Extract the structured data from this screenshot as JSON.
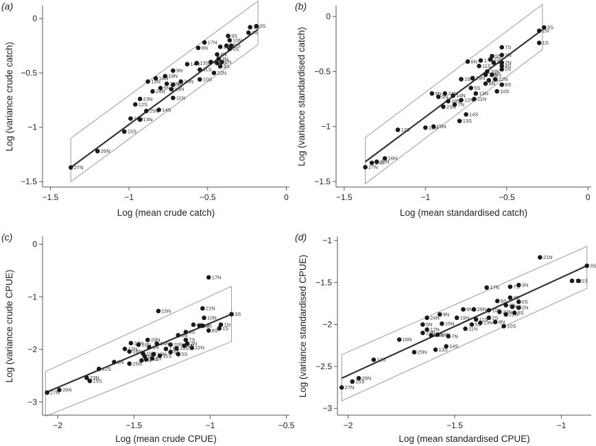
{
  "figure": {
    "panel_labels": [
      "(a)",
      "(b)",
      "(c)",
      "(d)"
    ]
  },
  "chart_data": [
    {
      "id": "a",
      "type": "scatter",
      "panel_label": "(a)",
      "xlabel": "Log (mean crude catch)",
      "ylabel": "Log (variance crude catch)",
      "xlim": [
        -1.55,
        0.02
      ],
      "ylim": [
        -1.55,
        0.12
      ],
      "xticks": [
        -1.5,
        -1,
        -0.5,
        0
      ],
      "xtick_labels": [
        "−1.5",
        "−1",
        "−0.5",
        "0"
      ],
      "yticks": [
        -1.5,
        -1,
        -0.5,
        0
      ],
      "ytick_labels": [
        "−1.5",
        "−1",
        "−0.5",
        "0"
      ],
      "fit_line": [
        [
          -1.37,
          -1.37
        ],
        [
          -0.18,
          -0.1
        ]
      ],
      "band": [
        [
          -1.37,
          -1.1
        ],
        [
          -0.18,
          0.16
        ],
        [
          -0.18,
          -0.24
        ],
        [
          -1.37,
          -1.5
        ]
      ],
      "points": [
        {
          "label": "27N",
          "x": -1.37,
          "y": -1.37
        },
        {
          "label": "26N",
          "x": -1.2,
          "y": -1.22
        },
        {
          "label": "15S",
          "x": -1.03,
          "y": -1.04
        },
        {
          "label": "16N",
          "x": -0.99,
          "y": -0.92
        },
        {
          "label": "13N",
          "x": -0.93,
          "y": -0.93
        },
        {
          "label": "25N",
          "x": -0.89,
          "y": -0.85
        },
        {
          "label": "14S",
          "x": -0.81,
          "y": -0.84
        },
        {
          "label": "12S",
          "x": -0.96,
          "y": -0.79
        },
        {
          "label": "23N",
          "x": -0.93,
          "y": -0.74
        },
        {
          "label": "24N",
          "x": -0.85,
          "y": -0.67
        },
        {
          "label": "13N",
          "x": -0.88,
          "y": -0.58
        },
        {
          "label": "18N",
          "x": -0.83,
          "y": -0.55
        },
        {
          "label": "5N",
          "x": -0.8,
          "y": -0.64
        },
        {
          "label": "11N",
          "x": -0.72,
          "y": -0.73
        },
        {
          "label": "13N",
          "x": -0.73,
          "y": -0.65
        },
        {
          "label": "29N",
          "x": -0.76,
          "y": -0.6
        },
        {
          "label": "19N",
          "x": -0.77,
          "y": -0.53
        },
        {
          "label": "7N",
          "x": -0.72,
          "y": -0.61
        },
        {
          "label": "20N",
          "x": -0.67,
          "y": -0.58
        },
        {
          "label": "9N",
          "x": -0.72,
          "y": -0.48
        },
        {
          "label": "14N",
          "x": -0.63,
          "y": -0.42
        },
        {
          "label": "13S",
          "x": -0.57,
          "y": -0.41
        },
        {
          "label": "6N",
          "x": -0.56,
          "y": -0.27
        },
        {
          "label": "17N",
          "x": -0.52,
          "y": -0.22
        },
        {
          "label": "21N",
          "x": -0.42,
          "y": -0.26
        },
        {
          "label": "6S",
          "x": -0.38,
          "y": -0.25
        },
        {
          "label": "9S",
          "x": -0.37,
          "y": -0.16
        },
        {
          "label": "10N",
          "x": -0.36,
          "y": -0.2
        },
        {
          "label": "7S",
          "x": -0.35,
          "y": -0.25
        },
        {
          "label": "0S",
          "x": -0.36,
          "y": -0.28
        },
        {
          "label": "4N",
          "x": -0.44,
          "y": -0.33
        },
        {
          "label": "3N",
          "x": -0.43,
          "y": -0.37
        },
        {
          "label": "2N",
          "x": -0.41,
          "y": -0.4
        },
        {
          "label": "8N",
          "x": -0.48,
          "y": -0.4
        },
        {
          "label": "11S",
          "x": -0.55,
          "y": -0.47
        },
        {
          "label": "5S",
          "x": -0.44,
          "y": -0.41
        },
        {
          "label": "4S",
          "x": -0.42,
          "y": -0.44
        },
        {
          "label": "22N",
          "x": -0.46,
          "y": -0.5
        },
        {
          "label": "10S",
          "x": -0.55,
          "y": -0.56
        },
        {
          "label": "1N",
          "x": -0.23,
          "y": -0.08
        },
        {
          "label": "3S",
          "x": -0.19,
          "y": -0.07
        },
        {
          "label": "1S",
          "x": -0.24,
          "y": -0.13
        }
      ]
    },
    {
      "id": "b",
      "type": "scatter",
      "panel_label": "(b)",
      "xlabel": "Log (mean standardised catch)",
      "ylabel": "Log (variance standardised catch)",
      "xlim": [
        -1.55,
        0.02
      ],
      "ylim": [
        -1.55,
        0.1
      ],
      "xticks": [
        -1.5,
        -1,
        -0.5,
        0
      ],
      "xtick_labels": [
        "−1.5",
        "−1",
        "−0.5",
        "0"
      ],
      "yticks": [
        -1.5,
        -1,
        -0.5,
        0
      ],
      "ytick_labels": [
        "−1.5",
        "−1",
        "−0.5",
        "0"
      ],
      "fit_line": [
        [
          -1.37,
          -1.32
        ],
        [
          -0.28,
          -0.12
        ]
      ],
      "band": [
        [
          -1.37,
          -1.1
        ],
        [
          -0.28,
          0.11
        ],
        [
          -0.28,
          -0.3
        ],
        [
          -1.37,
          -1.52
        ]
      ],
      "points": [
        {
          "label": "27N",
          "x": -1.37,
          "y": -1.37
        },
        {
          "label": "15S",
          "x": -1.33,
          "y": -1.33
        },
        {
          "label": "26N",
          "x": -1.3,
          "y": -1.32
        },
        {
          "label": "16N",
          "x": -1.25,
          "y": -1.29
        },
        {
          "label": "12S",
          "x": -1.17,
          "y": -1.03
        },
        {
          "label": "15N",
          "x": -1.0,
          "y": -1.01
        },
        {
          "label": "25N",
          "x": -0.95,
          "y": -1.0
        },
        {
          "label": "13S",
          "x": -0.79,
          "y": -0.95
        },
        {
          "label": "14S",
          "x": -0.75,
          "y": -0.89
        },
        {
          "label": "23N",
          "x": -0.89,
          "y": -0.82
        },
        {
          "label": "18N",
          "x": -0.86,
          "y": -0.77
        },
        {
          "label": "7N",
          "x": -0.82,
          "y": -0.8
        },
        {
          "label": "12N",
          "x": -0.78,
          "y": -0.76
        },
        {
          "label": "11N",
          "x": -0.7,
          "y": -0.75
        },
        {
          "label": "13N",
          "x": -0.69,
          "y": -0.7
        },
        {
          "label": "5N",
          "x": -0.92,
          "y": -0.73
        },
        {
          "label": "9N",
          "x": -0.96,
          "y": -0.7
        },
        {
          "label": "24N",
          "x": -0.88,
          "y": -0.7
        },
        {
          "label": "14N",
          "x": -0.83,
          "y": -0.72
        },
        {
          "label": "5S",
          "x": -0.72,
          "y": -0.65
        },
        {
          "label": "19N",
          "x": -0.78,
          "y": -0.57
        },
        {
          "label": "29N",
          "x": -0.71,
          "y": -0.56
        },
        {
          "label": "8N",
          "x": -0.63,
          "y": -0.61
        },
        {
          "label": "20N",
          "x": -0.62,
          "y": -0.5
        },
        {
          "label": "10N",
          "x": -0.63,
          "y": -0.53
        },
        {
          "label": "11S",
          "x": -0.67,
          "y": -0.45
        },
        {
          "label": "2S",
          "x": -0.61,
          "y": -0.58
        },
        {
          "label": "6S",
          "x": -0.59,
          "y": -0.53
        },
        {
          "label": "22N",
          "x": -0.57,
          "y": -0.57
        },
        {
          "label": "8S",
          "x": -0.53,
          "y": -0.62
        },
        {
          "label": "10S",
          "x": -0.56,
          "y": -0.68
        },
        {
          "label": "6N",
          "x": -0.74,
          "y": -0.41
        },
        {
          "label": "17N",
          "x": -0.66,
          "y": -0.4
        },
        {
          "label": "9S",
          "x": -0.59,
          "y": -0.36
        },
        {
          "label": "21N",
          "x": -0.6,
          "y": -0.39
        },
        {
          "label": "4N",
          "x": -0.58,
          "y": -0.42
        },
        {
          "label": "7S",
          "x": -0.53,
          "y": -0.28
        },
        {
          "label": "3N",
          "x": -0.53,
          "y": -0.35
        },
        {
          "label": "2N",
          "x": -0.53,
          "y": -0.42
        },
        {
          "label": "4S",
          "x": -0.53,
          "y": -0.45
        },
        {
          "label": "0S",
          "x": -0.53,
          "y": -0.48
        },
        {
          "label": "1N",
          "x": -0.3,
          "y": -0.13
        },
        {
          "label": "3S",
          "x": -0.27,
          "y": -0.1
        },
        {
          "label": "1S",
          "x": -0.3,
          "y": -0.24
        }
      ]
    },
    {
      "id": "c",
      "type": "scatter",
      "panel_label": "(c)",
      "xlabel": "Log (mean crude CPUE)",
      "ylabel": "Log (variance crude CPUE)",
      "xlim": [
        -2.1,
        -0.48
      ],
      "ylim": [
        -3.25,
        0.15
      ],
      "xticks": [
        -2,
        -1.5,
        -1,
        -0.5
      ],
      "xtick_labels": [
        "−2",
        "−1.5",
        "−1",
        "−0.5"
      ],
      "yticks": [
        -3,
        -2,
        -1,
        0
      ],
      "ytick_labels": [
        "−3",
        "−2",
        "−1",
        "0"
      ],
      "fit_line": [
        [
          -2.08,
          -2.82
        ],
        [
          -0.86,
          -1.33
        ]
      ],
      "band": [
        [
          -2.08,
          -2.42
        ],
        [
          -0.86,
          -0.8
        ],
        [
          -0.86,
          -1.85
        ],
        [
          -2.08,
          -3.27
        ]
      ],
      "points": [
        {
          "label": "27N",
          "x": -2.07,
          "y": -2.82
        },
        {
          "label": "26N",
          "x": -1.99,
          "y": -2.77
        },
        {
          "label": "15S",
          "x": -1.79,
          "y": -2.6
        },
        {
          "label": "23N",
          "x": -1.81,
          "y": -2.54
        },
        {
          "label": "12S",
          "x": -1.73,
          "y": -2.37
        },
        {
          "label": "5N",
          "x": -1.63,
          "y": -2.24
        },
        {
          "label": "25N",
          "x": -1.53,
          "y": -2.27
        },
        {
          "label": "7N",
          "x": -1.45,
          "y": -2.21
        },
        {
          "label": "14S",
          "x": -1.42,
          "y": -2.19
        },
        {
          "label": "2S",
          "x": -1.38,
          "y": -2.17
        },
        {
          "label": "16N",
          "x": -1.53,
          "y": -2.04
        },
        {
          "label": "12N",
          "x": -1.56,
          "y": -1.99
        },
        {
          "label": "24N",
          "x": -1.52,
          "y": -1.88
        },
        {
          "label": "18N",
          "x": -1.47,
          "y": -1.91
        },
        {
          "label": "29N",
          "x": -1.41,
          "y": -1.82
        },
        {
          "label": "9N",
          "x": -1.4,
          "y": -1.96
        },
        {
          "label": "14N",
          "x": -1.35,
          "y": -1.89
        },
        {
          "label": "19N",
          "x": -1.44,
          "y": -2.08
        },
        {
          "label": "6N",
          "x": -1.43,
          "y": -2.13
        },
        {
          "label": "13N",
          "x": -1.37,
          "y": -2.09
        },
        {
          "label": "11S",
          "x": -1.33,
          "y": -2.12
        },
        {
          "label": "13S",
          "x": -1.29,
          "y": -1.99
        },
        {
          "label": "20N",
          "x": -1.26,
          "y": -1.91
        },
        {
          "label": "8N",
          "x": -1.21,
          "y": -1.73
        },
        {
          "label": "9S",
          "x": -1.16,
          "y": -1.67
        },
        {
          "label": "7S",
          "x": -1.16,
          "y": -1.82
        },
        {
          "label": "2N",
          "x": -1.15,
          "y": -1.89
        },
        {
          "label": "6S",
          "x": -1.26,
          "y": -2.05
        },
        {
          "label": "5S",
          "x": -1.21,
          "y": -2.09
        },
        {
          "label": "10S",
          "x": -1.22,
          "y": -1.98
        },
        {
          "label": "22N",
          "x": -1.12,
          "y": -1.97
        },
        {
          "label": "4N",
          "x": -1.17,
          "y": -1.93
        },
        {
          "label": "4S",
          "x": -1.11,
          "y": -1.53
        },
        {
          "label": "3N",
          "x": -1.07,
          "y": -1.55
        },
        {
          "label": "0S",
          "x": -1.05,
          "y": -1.55
        },
        {
          "label": "8S",
          "x": -1.01,
          "y": -1.64
        },
        {
          "label": "10N",
          "x": -1.04,
          "y": -1.4
        },
        {
          "label": "21N",
          "x": -1.05,
          "y": -1.22
        },
        {
          "label": "15N",
          "x": -1.34,
          "y": -1.27
        },
        {
          "label": "17N",
          "x": -1.01,
          "y": -0.63
        },
        {
          "label": "1N",
          "x": -0.93,
          "y": -1.53
        },
        {
          "label": "1S",
          "x": -0.94,
          "y": -1.6
        },
        {
          "label": "3S",
          "x": -0.86,
          "y": -1.33
        }
      ]
    },
    {
      "id": "d",
      "type": "scatter",
      "panel_label": "(d)",
      "xlabel": "Log (mean standardised CPUE)",
      "ylabel": "Log (variance standardised CPUE)",
      "xlim": [
        -2.05,
        -0.86
      ],
      "ylim": [
        -3.08,
        -0.95
      ],
      "xticks": [
        -2,
        -1.5,
        -1
      ],
      "xtick_labels": [
        "−2",
        "−1.5",
        "−1"
      ],
      "yticks": [
        -3,
        -2.5,
        -2,
        -1.5,
        -1
      ],
      "ytick_labels": [
        "−3",
        "−2.5",
        "−2",
        "−1.5",
        "−1"
      ],
      "fit_line": [
        [
          -2.03,
          -2.64
        ],
        [
          -0.88,
          -1.3
        ]
      ],
      "band": [
        [
          -2.03,
          -2.36
        ],
        [
          -0.88,
          -1.07
        ],
        [
          -0.88,
          -1.57
        ],
        [
          -2.03,
          -2.91
        ]
      ],
      "points": [
        {
          "label": "27N",
          "x": -2.03,
          "y": -2.75
        },
        {
          "label": "15S",
          "x": -1.98,
          "y": -2.68
        },
        {
          "label": "26N",
          "x": -1.95,
          "y": -2.64
        },
        {
          "label": "12S",
          "x": -1.88,
          "y": -2.42
        },
        {
          "label": "16N",
          "x": -1.76,
          "y": -2.18
        },
        {
          "label": "25N",
          "x": -1.69,
          "y": -2.33
        },
        {
          "label": "13S",
          "x": -1.59,
          "y": -2.3
        },
        {
          "label": "14S",
          "x": -1.54,
          "y": -2.26
        },
        {
          "label": "23N",
          "x": -1.65,
          "y": -2.1
        },
        {
          "label": "14N",
          "x": -1.61,
          "y": -2.13
        },
        {
          "label": "5N",
          "x": -1.65,
          "y": -2.0
        },
        {
          "label": "12N",
          "x": -1.63,
          "y": -2.06
        },
        {
          "label": "18N",
          "x": -1.58,
          "y": -2.12
        },
        {
          "label": "7N",
          "x": -1.53,
          "y": -2.14
        },
        {
          "label": "24N",
          "x": -1.63,
          "y": -1.92
        },
        {
          "label": "15N",
          "x": -1.56,
          "y": -1.99
        },
        {
          "label": "9N",
          "x": -1.57,
          "y": -1.88
        },
        {
          "label": "19N",
          "x": -1.49,
          "y": -1.92
        },
        {
          "label": "6N",
          "x": -1.46,
          "y": -1.82
        },
        {
          "label": "29N",
          "x": -1.41,
          "y": -1.82
        },
        {
          "label": "11N",
          "x": -1.45,
          "y": -2.05
        },
        {
          "label": "5S",
          "x": -1.42,
          "y": -2.0
        },
        {
          "label": "13N",
          "x": -1.38,
          "y": -1.98
        },
        {
          "label": "11S",
          "x": -1.4,
          "y": -1.94
        },
        {
          "label": "2S",
          "x": -1.34,
          "y": -1.92
        },
        {
          "label": "8N",
          "x": -1.31,
          "y": -1.97
        },
        {
          "label": "10S",
          "x": -1.27,
          "y": -2.02
        },
        {
          "label": "10N",
          "x": -1.34,
          "y": -1.83
        },
        {
          "label": "20N",
          "x": -1.29,
          "y": -1.85
        },
        {
          "label": "22N",
          "x": -1.26,
          "y": -1.88
        },
        {
          "label": "17N",
          "x": -1.35,
          "y": -1.56
        },
        {
          "label": "9S",
          "x": -1.3,
          "y": -1.72
        },
        {
          "label": "4N",
          "x": -1.26,
          "y": -1.77
        },
        {
          "label": "4S",
          "x": -1.24,
          "y": -1.68
        },
        {
          "label": "7S",
          "x": -1.24,
          "y": -1.55
        },
        {
          "label": "3N",
          "x": -1.2,
          "y": -1.53
        },
        {
          "label": "0S",
          "x": -1.2,
          "y": -1.73
        },
        {
          "label": "8S",
          "x": -1.22,
          "y": -1.86
        },
        {
          "label": "2N",
          "x": -1.2,
          "y": -1.8
        },
        {
          "label": "6S",
          "x": -1.23,
          "y": -1.79
        },
        {
          "label": "21N",
          "x": -1.1,
          "y": -1.2
        },
        {
          "label": "1N",
          "x": -0.95,
          "y": -1.48
        },
        {
          "label": "1S",
          "x": -0.92,
          "y": -1.48
        },
        {
          "label": "3S",
          "x": -0.88,
          "y": -1.3
        }
      ]
    }
  ]
}
